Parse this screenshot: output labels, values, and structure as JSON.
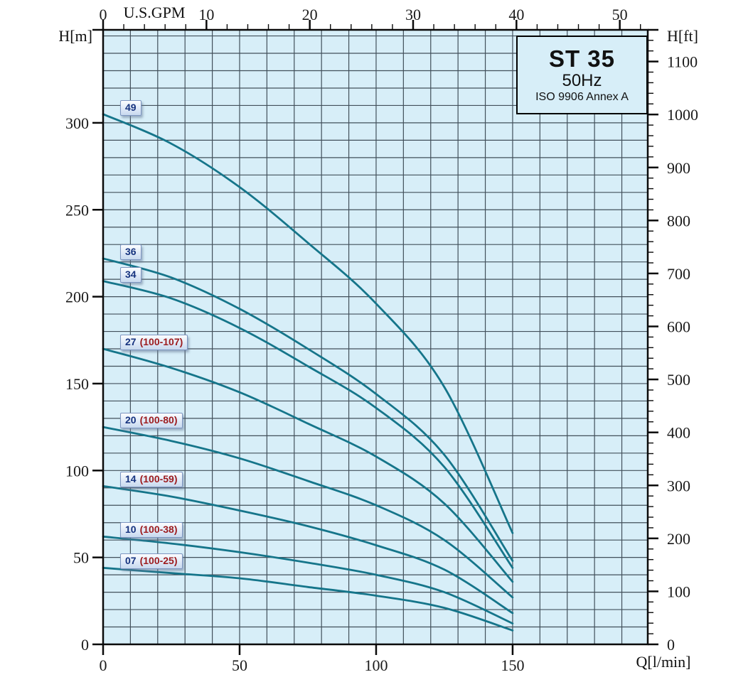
{
  "title_box": {
    "model": "ST 35",
    "frequency": "50Hz",
    "standard": "ISO 9906 Annex A"
  },
  "axis_labels": {
    "left": "H[m]",
    "right": "H[ft]",
    "top": "U.S.GPM",
    "bottom": "Q[l/min]"
  },
  "colors": {
    "plot_bg": "#d7eef8",
    "grid": "#42505b",
    "axis": "#0a0a0a",
    "curve": "#15758a",
    "tick_text": "#1a1a1a",
    "label_stages_text": "#16337f",
    "label_range_text": "#9c1b1e"
  },
  "chart_data": {
    "type": "line",
    "title": "ST 35 50Hz ISO 9906 Annex A pump performance curves",
    "xlabel": "Q[l/min]",
    "x2label": "U.S.GPM",
    "ylabel": "H[m]",
    "y2label": "H[ft]",
    "grid": "on",
    "xlim": [
      0,
      199.5
    ],
    "ylim": [
      0,
      353.5
    ],
    "bottom_major_ticks_lmin": [
      0,
      50,
      100,
      150
    ],
    "top_major_ticks_gpm": [
      0,
      10,
      20,
      30,
      40,
      50
    ],
    "top_minor_step_gpm": 2,
    "top_minor_max_gpm": 52,
    "left_major_ticks_m": [
      0,
      50,
      100,
      150,
      200,
      250,
      300
    ],
    "right_major_ticks_ft": [
      0,
      100,
      200,
      300,
      400,
      500,
      600,
      700,
      800,
      900,
      1000,
      1100
    ],
    "right_minor_step_ft": 20,
    "grid_step_x_lmin": 10,
    "grid_step_y_m": 10,
    "lmin_per_gpm": 3.785,
    "m_per_ft": 0.3048,
    "x": [
      0,
      25,
      50,
      75,
      100,
      125,
      150
    ],
    "series": [
      {
        "stages": "49",
        "range": "",
        "values": [
          305,
          288,
          263,
          231,
          196,
          148,
          64
        ]
      },
      {
        "stages": "36",
        "range": "",
        "values": [
          222,
          211,
          193,
          170,
          144,
          109,
          48
        ]
      },
      {
        "stages": "34",
        "range": "",
        "values": [
          209,
          199,
          182,
          160,
          136,
          102,
          44
        ]
      },
      {
        "stages": "27",
        "range": "(100-107)",
        "values": [
          170,
          159,
          145,
          127,
          108,
          81,
          36
        ]
      },
      {
        "stages": "20",
        "range": "(100-80)",
        "values": [
          125,
          117,
          107,
          94,
          80,
          60,
          27
        ]
      },
      {
        "stages": "14",
        "range": "(100-59)",
        "values": [
          91,
          85,
          77,
          68,
          57,
          43,
          18
        ]
      },
      {
        "stages": "10",
        "range": "(100-38)",
        "values": [
          62,
          58,
          53,
          47,
          40,
          30,
          12
        ]
      },
      {
        "stages": "07",
        "range": "(100-25)",
        "values": [
          44,
          41,
          38,
          33,
          28,
          21,
          8
        ]
      }
    ]
  }
}
